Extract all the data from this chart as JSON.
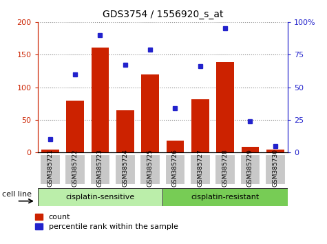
{
  "title": "GDS3754 / 1556920_s_at",
  "samples": [
    "GSM385721",
    "GSM385722",
    "GSM385723",
    "GSM385724",
    "GSM385725",
    "GSM385726",
    "GSM385727",
    "GSM385728",
    "GSM385729",
    "GSM385730"
  ],
  "count_values": [
    5,
    79,
    161,
    65,
    120,
    18,
    82,
    139,
    9,
    4
  ],
  "percentile_values": [
    10,
    60,
    90,
    67,
    79,
    34,
    66,
    95,
    24,
    5
  ],
  "left_ylim": [
    0,
    200
  ],
  "right_ylim": [
    0,
    100
  ],
  "left_yticks": [
    0,
    50,
    100,
    150,
    200
  ],
  "right_yticks": [
    0,
    25,
    50,
    75,
    100
  ],
  "right_yticklabels": [
    "0",
    "25",
    "50",
    "75",
    "100%"
  ],
  "bar_color": "#cc2200",
  "blue_color": "#2222cc",
  "group1_label": "cisplatin-sensitive",
  "group2_label": "cisplatin-resistant",
  "cell_line_label": "cell line",
  "legend_count": "count",
  "legend_percentile": "percentile rank within the sample",
  "group_bg_light": "#bbeeaa",
  "group_bg_mid": "#77cc55",
  "gray_box": "#c8c8c8",
  "grid_color": "#888888",
  "n_group1": 5,
  "n_group2": 5
}
